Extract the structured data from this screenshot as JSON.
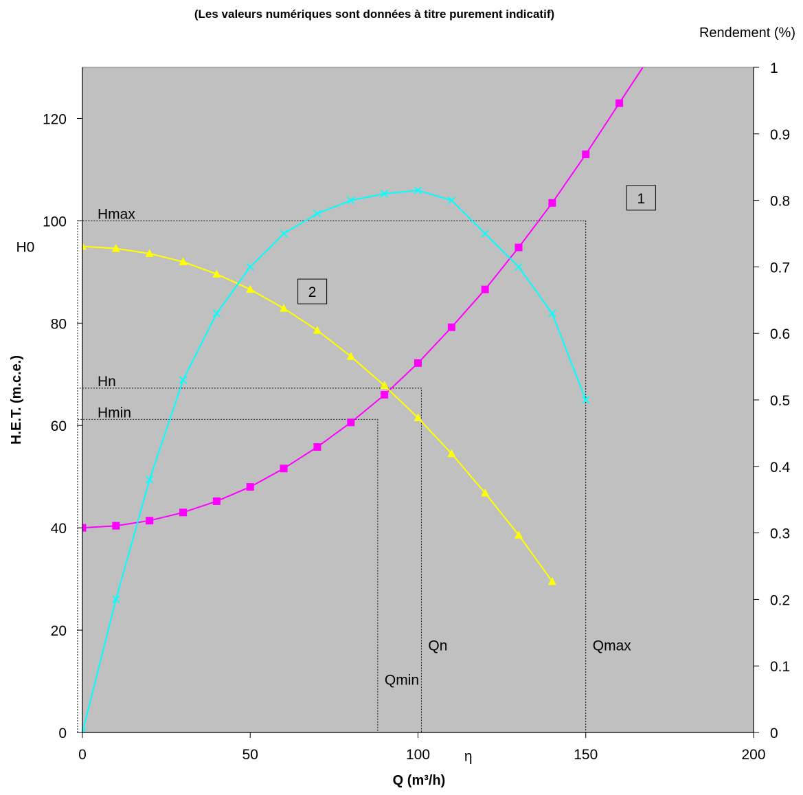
{
  "chart_data": {
    "type": "line",
    "title": "(Les valeurs numériques sont données à titre purement indicatif)",
    "xlabel": "Q (m³/h)",
    "ylabel": "H.E.T. (m.c.e.)",
    "y2label": "Rendement (%)",
    "xlim": [
      0,
      200
    ],
    "ylim": [
      0,
      130
    ],
    "y2lim": [
      0,
      1
    ],
    "x_ticks": [
      "0",
      "50",
      "100",
      "150",
      "200"
    ],
    "y_ticks": [
      "0",
      "20",
      "40",
      "60",
      "80",
      "100",
      "120"
    ],
    "y2_ticks": [
      "0",
      "0.1",
      "0.2",
      "0.3",
      "0.4",
      "0.5",
      "0.6",
      "0.7",
      "0.8",
      "0.9",
      "1"
    ],
    "grid": false,
    "plot_background": "#c0c0c0",
    "series": [
      {
        "axis": "left",
        "color": "#ff00ff",
        "marker": "square",
        "x": [
          0,
          10,
          20,
          30,
          40,
          50,
          60,
          70,
          80,
          90,
          100,
          110,
          120,
          130,
          140,
          150,
          160,
          170
        ],
        "values": [
          40,
          40.4,
          41.4,
          43,
          45.2,
          48,
          51.6,
          55.8,
          60.6,
          66,
          72.2,
          79.2,
          86.6,
          94.8,
          103.5,
          113,
          123,
          133
        ]
      },
      {
        "axis": "left",
        "color": "#ffff00",
        "marker": "triangle",
        "x": [
          0,
          10,
          20,
          30,
          40,
          50,
          60,
          70,
          80,
          90,
          100,
          110,
          120,
          130,
          140
        ],
        "values": [
          95,
          94.6,
          93.6,
          92,
          89.6,
          86.6,
          82.9,
          78.6,
          73.5,
          67.8,
          61.5,
          54.5,
          46.8,
          38.6,
          29.5
        ]
      },
      {
        "axis": "right",
        "color": "#00ffff",
        "marker": "x",
        "x": [
          0,
          10,
          20,
          30,
          40,
          50,
          60,
          70,
          80,
          90,
          100,
          110,
          120,
          130,
          140,
          150
        ],
        "values": [
          0,
          0.2,
          0.38,
          0.53,
          0.63,
          0.7,
          0.75,
          0.78,
          0.8,
          0.81,
          0.815,
          0.8,
          0.75,
          0.7,
          0.63,
          0.5
        ]
      }
    ],
    "reference_lines": [
      {
        "label": "Hmax",
        "h": 100,
        "q": 150,
        "qlabel": "Qmax",
        "qlabel_y": 17
      },
      {
        "label": "Hn",
        "h": 67.3,
        "q": 101,
        "qlabel": "Qn",
        "qlabel_y": 17
      },
      {
        "label": "Hmin",
        "h": 61.2,
        "q": 88,
        "qlabel": "Qmin",
        "qlabel_y": 10.3
      }
    ],
    "annotations": [
      {
        "text": "H0",
        "x": -17,
        "y": 95
      },
      {
        "text": "η",
        "x": 115,
        "y": -4.5
      }
    ],
    "boxed_labels": [
      {
        "text": "1",
        "x": 166.5,
        "y": 104.5
      },
      {
        "text": "2",
        "x": 68.5,
        "y": 86.2
      }
    ]
  }
}
